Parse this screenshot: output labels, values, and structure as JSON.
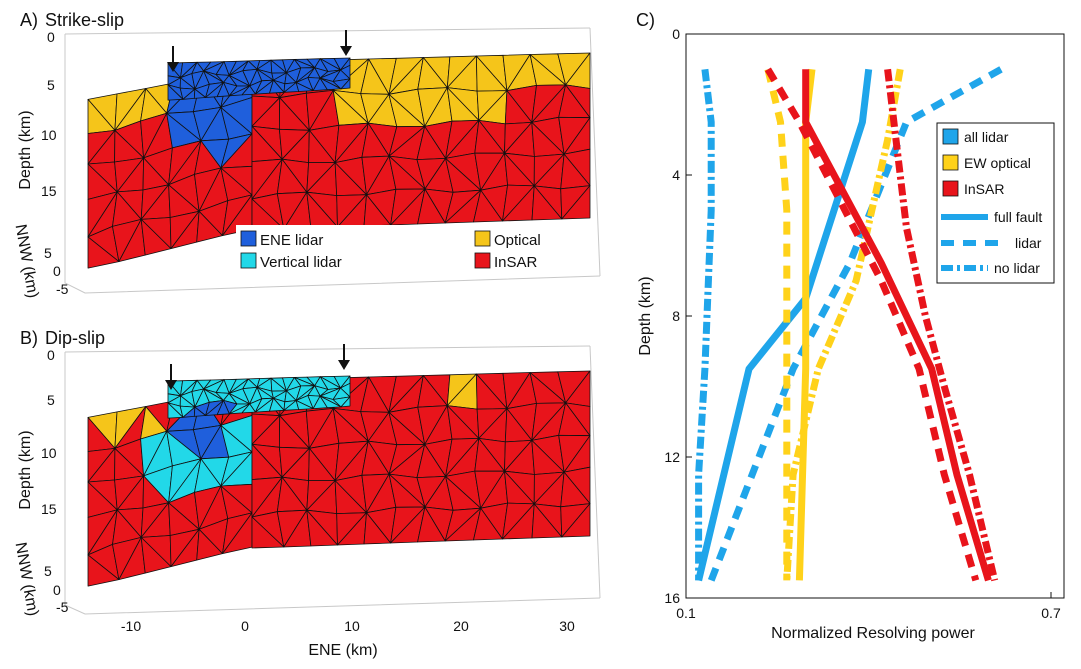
{
  "chart_data": [
    {
      "type": "mesh",
      "panel_label": "A)",
      "title": "Strike-slip",
      "ylabel": "Depth (km)",
      "zlabel": "NNW (km)",
      "y_ticks": [
        "0",
        "5",
        "10",
        "15"
      ],
      "z_ticks": [
        "5",
        "0",
        "-5"
      ],
      "x_ticks": [
        "-10",
        "0",
        "10",
        "20",
        "30"
      ],
      "arrows_at_ene_km": [
        -6,
        9
      ],
      "legend": [
        {
          "label": "ENE lidar",
          "color": "#1f5fdc"
        },
        {
          "label": "Optical",
          "color": "#f5c51a"
        },
        {
          "label": "Vertical lidar",
          "color": "#22d8e8"
        },
        {
          "label": "InSAR",
          "color": "#e8141b"
        }
      ]
    },
    {
      "type": "mesh",
      "panel_label": "B)",
      "title": "Dip-slip",
      "ylabel": "Depth (km)",
      "zlabel": "NNW (km)",
      "xlabel": "ENE (km)",
      "y_ticks": [
        "0",
        "5",
        "10",
        "15"
      ],
      "z_ticks": [
        "5",
        "0",
        "-5"
      ],
      "x_ticks": [
        "-10",
        "0",
        "10",
        "20",
        "30"
      ],
      "arrows_at_ene_km": [
        -6,
        9
      ]
    },
    {
      "type": "line",
      "panel_label": "C)",
      "xlabel": "Normalized Resolving power",
      "ylabel": "Depth (km)",
      "xlim": [
        0.1,
        0.7
      ],
      "ylim": [
        0,
        16
      ],
      "y_reversed": true,
      "x_tick_labels": [
        "0.1",
        "0.7"
      ],
      "y_ticks": [
        0,
        4,
        8,
        12,
        16
      ],
      "legend": [
        {
          "label": "all lidar",
          "kind": "swatch",
          "color": "#1fa5ea"
        },
        {
          "label": "EW optical",
          "kind": "swatch",
          "color": "#ffd21a"
        },
        {
          "label": "InSAR",
          "kind": "swatch",
          "color": "#e8141b"
        },
        {
          "label": "full fault",
          "kind": "line",
          "dash": "solid"
        },
        {
          "label": "lidar",
          "kind": "line",
          "dash": "dashed"
        },
        {
          "label": "no lidar",
          "kind": "line",
          "dash": "dashdot"
        }
      ],
      "series": [
        {
          "dataset": "all lidar",
          "style": "full fault",
          "color": "#1fa5ea",
          "points": [
            [
              0.39,
              1
            ],
            [
              0.38,
              2.5
            ],
            [
              0.29,
              7.5
            ],
            [
              0.2,
              9.5
            ],
            [
              0.12,
              15.5
            ]
          ]
        },
        {
          "dataset": "all lidar",
          "style": "lidar",
          "color": "#1fa5ea",
          "points": [
            [
              0.6,
              1
            ],
            [
              0.45,
              2.5
            ],
            [
              0.36,
              6.5
            ],
            [
              0.27,
              9.5
            ],
            [
              0.14,
              15.5
            ]
          ]
        },
        {
          "dataset": "all lidar",
          "style": "no lidar",
          "color": "#1fa5ea",
          "points": [
            [
              0.13,
              1
            ],
            [
              0.14,
              2.5
            ],
            [
              0.14,
              5
            ],
            [
              0.13,
              9.5
            ],
            [
              0.12,
              12.5
            ],
            [
              0.12,
              15.5
            ]
          ]
        },
        {
          "dataset": "EW optical",
          "style": "full fault",
          "color": "#ffd21a",
          "points": [
            [
              0.3,
              1
            ],
            [
              0.29,
              2.5
            ],
            [
              0.29,
              9.5
            ],
            [
              0.28,
              15.5
            ]
          ]
        },
        {
          "dataset": "EW optical",
          "style": "lidar",
          "color": "#ffd21a",
          "points": [
            [
              0.23,
              1
            ],
            [
              0.25,
              2.5
            ],
            [
              0.26,
              5
            ],
            [
              0.26,
              9.5
            ],
            [
              0.26,
              12.5
            ],
            [
              0.26,
              15.5
            ]
          ]
        },
        {
          "dataset": "EW optical",
          "style": "no lidar",
          "color": "#ffd21a",
          "points": [
            [
              0.44,
              1
            ],
            [
              0.42,
              3
            ],
            [
              0.37,
              7
            ],
            [
              0.31,
              9.5
            ],
            [
              0.27,
              12.5
            ],
            [
              0.26,
              15.5
            ]
          ]
        },
        {
          "dataset": "InSAR",
          "style": "full fault",
          "color": "#e8141b",
          "points": [
            [
              0.29,
              1
            ],
            [
              0.29,
              2.5
            ],
            [
              0.41,
              6.5
            ],
            [
              0.49,
              9.5
            ],
            [
              0.53,
              12.5
            ],
            [
              0.58,
              15.5
            ]
          ]
        },
        {
          "dataset": "InSAR",
          "style": "lidar",
          "color": "#e8141b",
          "points": [
            [
              0.23,
              1
            ],
            [
              0.28,
              2.5
            ],
            [
              0.41,
              7
            ],
            [
              0.47,
              9.5
            ],
            [
              0.51,
              12.5
            ],
            [
              0.56,
              15.5
            ]
          ]
        },
        {
          "dataset": "InSAR",
          "style": "no lidar",
          "color": "#e8141b",
          "points": [
            [
              0.42,
              1
            ],
            [
              0.43,
              2.5
            ],
            [
              0.45,
              5.5
            ],
            [
              0.48,
              8
            ],
            [
              0.51,
              10
            ],
            [
              0.55,
              12.5
            ],
            [
              0.59,
              15.5
            ]
          ]
        }
      ]
    }
  ]
}
